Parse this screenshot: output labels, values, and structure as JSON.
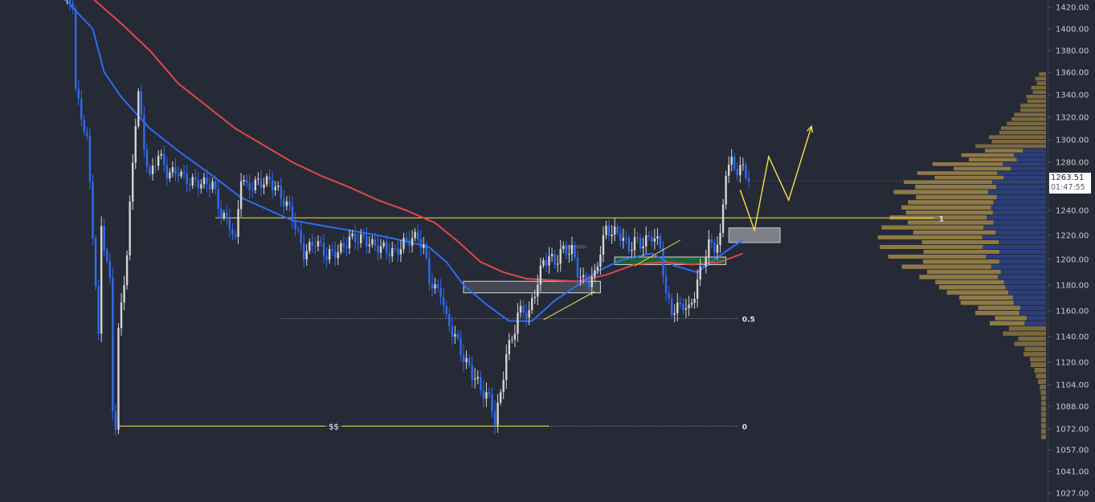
{
  "chart_data": {
    "type": "candlestick",
    "price_axis": {
      "ticks": [
        "1420.00",
        "1400.00",
        "1380.00",
        "1360.00",
        "1340.00",
        "1320.00",
        "1300.00",
        "1280.00",
        "1260.00",
        "1240.00",
        "1220.00",
        "1200.00",
        "1180.00",
        "1160.00",
        "1140.00",
        "1120.00",
        "1104.00",
        "1088.00",
        "1072.00",
        "1057.00",
        "1041.00",
        "1027.00"
      ],
      "tick_values": [
        1420,
        1400,
        1380,
        1360,
        1340,
        1320,
        1300,
        1280,
        1260,
        1240,
        1220,
        1200,
        1180,
        1160,
        1140,
        1120,
        1104,
        1088,
        1072,
        1057,
        1041,
        1027
      ],
      "range": [
        1022,
        1427
      ]
    },
    "current_price": {
      "label": "1263.51",
      "countdown": "01:47:55",
      "value": 1263.51
    },
    "price_path": [
      [
        0,
        1428
      ],
      [
        3,
        1420
      ],
      [
        4,
        1340
      ],
      [
        8,
        1300
      ],
      [
        10,
        1225
      ],
      [
        12,
        1140
      ],
      [
        13,
        1230
      ],
      [
        16,
        1180
      ],
      [
        17,
        1085
      ],
      [
        18,
        1072
      ],
      [
        19,
        1140
      ],
      [
        22,
        1205
      ],
      [
        25,
        1320
      ],
      [
        26,
        1345
      ],
      [
        28,
        1295
      ],
      [
        30,
        1265
      ],
      [
        33,
        1285
      ],
      [
        36,
        1270
      ],
      [
        40,
        1275
      ],
      [
        44,
        1262
      ],
      [
        48,
        1258
      ],
      [
        52,
        1262
      ],
      [
        55,
        1240
      ],
      [
        58,
        1230
      ],
      [
        60,
        1212
      ],
      [
        62,
        1265
      ],
      [
        64,
        1255
      ],
      [
        68,
        1265
      ],
      [
        72,
        1265
      ],
      [
        76,
        1248
      ],
      [
        80,
        1235
      ],
      [
        84,
        1208
      ],
      [
        88,
        1215
      ],
      [
        92,
        1200
      ],
      [
        96,
        1208
      ],
      [
        100,
        1220
      ],
      [
        104,
        1215
      ],
      [
        108,
        1210
      ],
      [
        112,
        1212
      ],
      [
        116,
        1207
      ],
      [
        120,
        1212
      ],
      [
        124,
        1218
      ],
      [
        126,
        1212
      ],
      [
        128,
        1188
      ],
      [
        130,
        1178
      ],
      [
        132,
        1175
      ],
      [
        134,
        1150
      ],
      [
        136,
        1142
      ],
      [
        140,
        1125
      ],
      [
        144,
        1112
      ],
      [
        146,
        1100
      ],
      [
        148,
        1095
      ],
      [
        150,
        1084
      ],
      [
        151,
        1076
      ],
      [
        153,
        1095
      ],
      [
        155,
        1130
      ],
      [
        157,
        1140
      ],
      [
        159,
        1160
      ],
      [
        161,
        1160
      ],
      [
        163,
        1155
      ],
      [
        165,
        1172
      ],
      [
        168,
        1198
      ],
      [
        170,
        1205
      ],
      [
        172,
        1200
      ],
      [
        174,
        1208
      ],
      [
        178,
        1205
      ],
      [
        180,
        1188
      ],
      [
        182,
        1182
      ],
      [
        184,
        1185
      ],
      [
        186,
        1190
      ],
      [
        188,
        1210
      ],
      [
        190,
        1225
      ],
      [
        192,
        1220
      ],
      [
        195,
        1218
      ],
      [
        198,
        1210
      ],
      [
        200,
        1218
      ],
      [
        203,
        1215
      ],
      [
        206,
        1218
      ],
      [
        209,
        1208
      ],
      [
        211,
        1170
      ],
      [
        213,
        1162
      ],
      [
        215,
        1165
      ],
      [
        217,
        1168
      ],
      [
        219,
        1160
      ],
      [
        221,
        1172
      ],
      [
        224,
        1195
      ],
      [
        226,
        1212
      ],
      [
        228,
        1212
      ],
      [
        230,
        1220
      ],
      [
        232,
        1275
      ],
      [
        234,
        1280
      ],
      [
        236,
        1270
      ],
      [
        238,
        1272
      ],
      [
        240,
        1263.51
      ]
    ],
    "series": [
      {
        "name": "",
        "color": "#2f6bf0",
        "points": [
          [
            0,
            1428
          ],
          [
            10,
            1400
          ],
          [
            14,
            1360
          ],
          [
            20,
            1338
          ],
          [
            30,
            1310
          ],
          [
            40,
            1290
          ],
          [
            52,
            1268
          ],
          [
            62,
            1250
          ],
          [
            72,
            1240
          ],
          [
            80,
            1232
          ],
          [
            90,
            1228
          ],
          [
            100,
            1224
          ],
          [
            110,
            1220
          ],
          [
            120,
            1215
          ],
          [
            128,
            1210
          ],
          [
            134,
            1198
          ],
          [
            140,
            1180
          ],
          [
            148,
            1165
          ],
          [
            156,
            1152
          ],
          [
            164,
            1152
          ],
          [
            172,
            1168
          ],
          [
            180,
            1180
          ],
          [
            188,
            1192
          ],
          [
            196,
            1200
          ],
          [
            206,
            1205
          ],
          [
            214,
            1195
          ],
          [
            222,
            1190
          ],
          [
            228,
            1200
          ],
          [
            234,
            1210
          ],
          [
            238,
            1216
          ]
        ]
      },
      {
        "name": "",
        "color": "#e0474c",
        "points": [
          [
            0,
            1440
          ],
          [
            10,
            1428
          ],
          [
            20,
            1405
          ],
          [
            30,
            1380
          ],
          [
            40,
            1350
          ],
          [
            50,
            1330
          ],
          [
            60,
            1310
          ],
          [
            70,
            1295
          ],
          [
            80,
            1280
          ],
          [
            90,
            1268
          ],
          [
            100,
            1258
          ],
          [
            110,
            1248
          ],
          [
            120,
            1240
          ],
          [
            130,
            1230
          ],
          [
            138,
            1215
          ],
          [
            146,
            1198
          ],
          [
            154,
            1190
          ],
          [
            162,
            1185
          ],
          [
            170,
            1184
          ],
          [
            180,
            1183
          ],
          [
            190,
            1188
          ],
          [
            200,
            1196
          ],
          [
            210,
            1198
          ],
          [
            220,
            1196
          ],
          [
            230,
            1198
          ],
          [
            238,
            1205
          ]
        ]
      }
    ],
    "levels": [
      {
        "name": "1",
        "value": 1234,
        "style": "solid",
        "color": "#f5e34a",
        "from": 53,
        "to": 305
      },
      {
        "name": "0.5",
        "value": 1154,
        "style": "dotted",
        "color": "#9aa0ad",
        "from": 76,
        "to": 236
      },
      {
        "name": "0",
        "value": 1074,
        "style": "dotted",
        "color": "#9aa0ad",
        "from": 76,
        "to": 236
      }
    ],
    "liquidity_line": {
      "label": "$$",
      "value": 1074,
      "color": "#f5e34a",
      "from": 19,
      "to": 170
    },
    "zones": [
      {
        "kind": "supply-gray",
        "top": 1226,
        "bottom": 1214,
        "from": 233,
        "to": 251,
        "fill": "#8e8f96",
        "stroke": "#c9c9cc"
      },
      {
        "kind": "demand-green",
        "top": 1202,
        "bottom": 1196,
        "from": 193,
        "to": 232,
        "fill": "#1f6b33",
        "stroke": "#d8d8d8"
      },
      {
        "kind": "order-block",
        "top": 1183,
        "bottom": 1174,
        "from": 140,
        "to": 188,
        "fill": "#4a4c56",
        "stroke": "#d8d8d8"
      },
      {
        "kind": "order-block-small",
        "top": 1212,
        "bottom": 1209,
        "from": 174,
        "to": 183,
        "fill": "#4a4c56",
        "stroke": "none"
      }
    ],
    "trendlines": [
      {
        "color": "#f5e34a",
        "points": [
          [
            168,
            1153
          ],
          [
            186,
            1175
          ]
        ]
      },
      {
        "color": "#f5e34a",
        "points": [
          [
            200,
            1195
          ],
          [
            216,
            1216
          ]
        ]
      }
    ],
    "projection": {
      "color": "#f5e34a",
      "points": [
        [
          237,
          1256
        ],
        [
          242,
          1224
        ],
        [
          247,
          1285
        ],
        [
          254,
          1248
        ],
        [
          262,
          1312
        ]
      ]
    },
    "volume_profile": {
      "min": 1066,
      "max": 1358,
      "step": 4,
      "max_width": 210,
      "peak_price": 1218,
      "peak_width": 205,
      "spread_hi": 58,
      "spread_lo": 46,
      "value_area": [
        1150,
        1290
      ],
      "colors": {
        "outside": "#8a7440",
        "inside_gold": "#8f7a45",
        "inside_blue": "#2b3f7a"
      }
    }
  }
}
